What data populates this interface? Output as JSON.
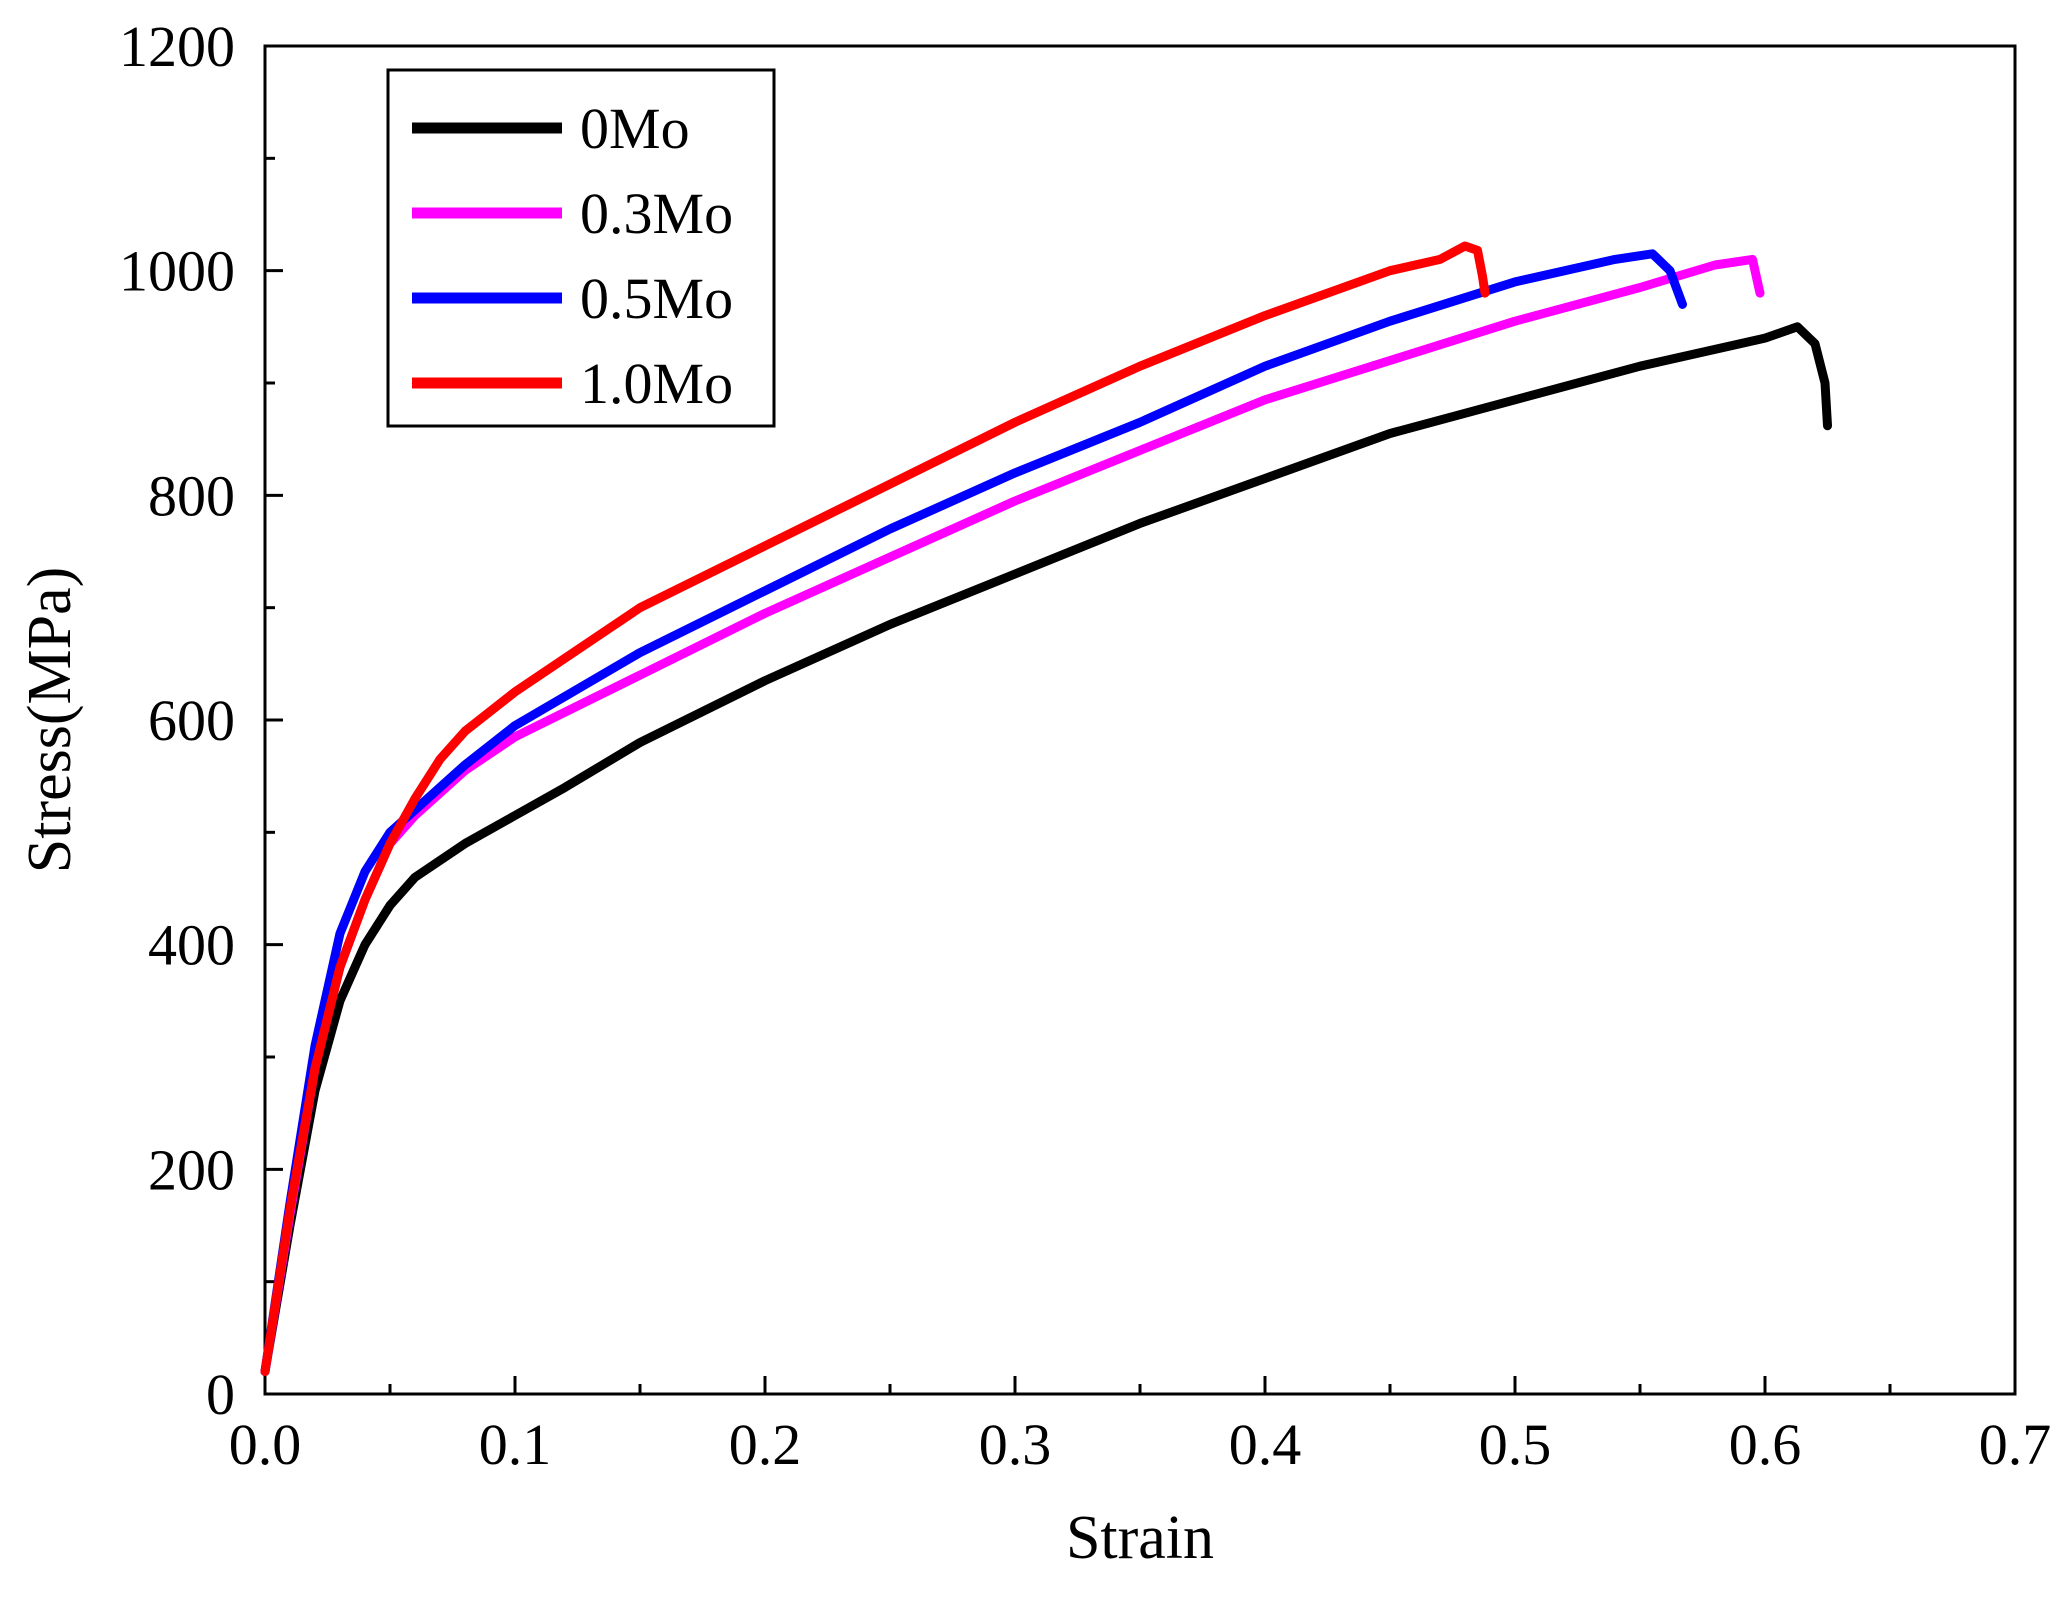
{
  "chart_data": {
    "type": "line",
    "title": "",
    "xlabel": "Strain",
    "ylabel": "Stress(MPa)",
    "xlim": [
      0.0,
      0.7
    ],
    "ylim": [
      0,
      1200
    ],
    "x_ticks": [
      0.0,
      0.1,
      0.2,
      0.3,
      0.4,
      0.5,
      0.6,
      0.7
    ],
    "x_tick_labels": [
      "0.0",
      "0.1",
      "0.2",
      "0.3",
      "0.4",
      "0.5",
      "0.6",
      "0.7"
    ],
    "y_ticks": [
      0,
      200,
      400,
      600,
      800,
      1000,
      1200
    ],
    "y_tick_labels": [
      "0",
      "200",
      "400",
      "600",
      "800",
      "1000",
      "1200"
    ],
    "grid": false,
    "legend_position": "top-left",
    "series": [
      {
        "name": "0Mo",
        "color": "#000000",
        "points": [
          [
            0.0,
            20
          ],
          [
            0.01,
            150
          ],
          [
            0.02,
            270
          ],
          [
            0.03,
            350
          ],
          [
            0.04,
            400
          ],
          [
            0.05,
            435
          ],
          [
            0.06,
            460
          ],
          [
            0.08,
            490
          ],
          [
            0.1,
            515
          ],
          [
            0.12,
            540
          ],
          [
            0.15,
            580
          ],
          [
            0.2,
            635
          ],
          [
            0.25,
            685
          ],
          [
            0.3,
            730
          ],
          [
            0.35,
            775
          ],
          [
            0.4,
            815
          ],
          [
            0.45,
            855
          ],
          [
            0.5,
            885
          ],
          [
            0.55,
            915
          ],
          [
            0.6,
            940
          ],
          [
            0.613,
            950
          ],
          [
            0.62,
            935
          ],
          [
            0.624,
            900
          ],
          [
            0.625,
            862
          ]
        ]
      },
      {
        "name": "0.3Mo",
        "color": "#ff00ff",
        "points": [
          [
            0.0,
            20
          ],
          [
            0.01,
            160
          ],
          [
            0.02,
            290
          ],
          [
            0.03,
            380
          ],
          [
            0.04,
            440
          ],
          [
            0.05,
            490
          ],
          [
            0.06,
            515
          ],
          [
            0.07,
            535
          ],
          [
            0.08,
            555
          ],
          [
            0.1,
            585
          ],
          [
            0.15,
            640
          ],
          [
            0.2,
            695
          ],
          [
            0.25,
            745
          ],
          [
            0.3,
            795
          ],
          [
            0.35,
            840
          ],
          [
            0.4,
            885
          ],
          [
            0.45,
            920
          ],
          [
            0.5,
            955
          ],
          [
            0.55,
            985
          ],
          [
            0.58,
            1005
          ],
          [
            0.595,
            1010
          ],
          [
            0.598,
            980
          ]
        ]
      },
      {
        "name": "0.5Mo",
        "color": "#0000ff",
        "points": [
          [
            0.0,
            20
          ],
          [
            0.01,
            170
          ],
          [
            0.02,
            310
          ],
          [
            0.03,
            410
          ],
          [
            0.04,
            465
          ],
          [
            0.05,
            500
          ],
          [
            0.06,
            520
          ],
          [
            0.07,
            540
          ],
          [
            0.08,
            560
          ],
          [
            0.1,
            595
          ],
          [
            0.15,
            660
          ],
          [
            0.2,
            715
          ],
          [
            0.25,
            770
          ],
          [
            0.3,
            820
          ],
          [
            0.35,
            865
          ],
          [
            0.4,
            915
          ],
          [
            0.45,
            955
          ],
          [
            0.5,
            990
          ],
          [
            0.54,
            1010
          ],
          [
            0.555,
            1015
          ],
          [
            0.562,
            1000
          ],
          [
            0.567,
            970
          ]
        ]
      },
      {
        "name": "1.0Mo",
        "color": "#ff0000",
        "points": [
          [
            0.0,
            20
          ],
          [
            0.01,
            165
          ],
          [
            0.02,
            290
          ],
          [
            0.03,
            380
          ],
          [
            0.04,
            440
          ],
          [
            0.05,
            490
          ],
          [
            0.06,
            530
          ],
          [
            0.07,
            565
          ],
          [
            0.08,
            590
          ],
          [
            0.1,
            625
          ],
          [
            0.15,
            700
          ],
          [
            0.2,
            755
          ],
          [
            0.25,
            810
          ],
          [
            0.3,
            865
          ],
          [
            0.35,
            915
          ],
          [
            0.4,
            960
          ],
          [
            0.45,
            1000
          ],
          [
            0.47,
            1010
          ],
          [
            0.48,
            1022
          ],
          [
            0.485,
            1018
          ],
          [
            0.487,
            995
          ],
          [
            0.488,
            980
          ]
        ]
      }
    ]
  }
}
